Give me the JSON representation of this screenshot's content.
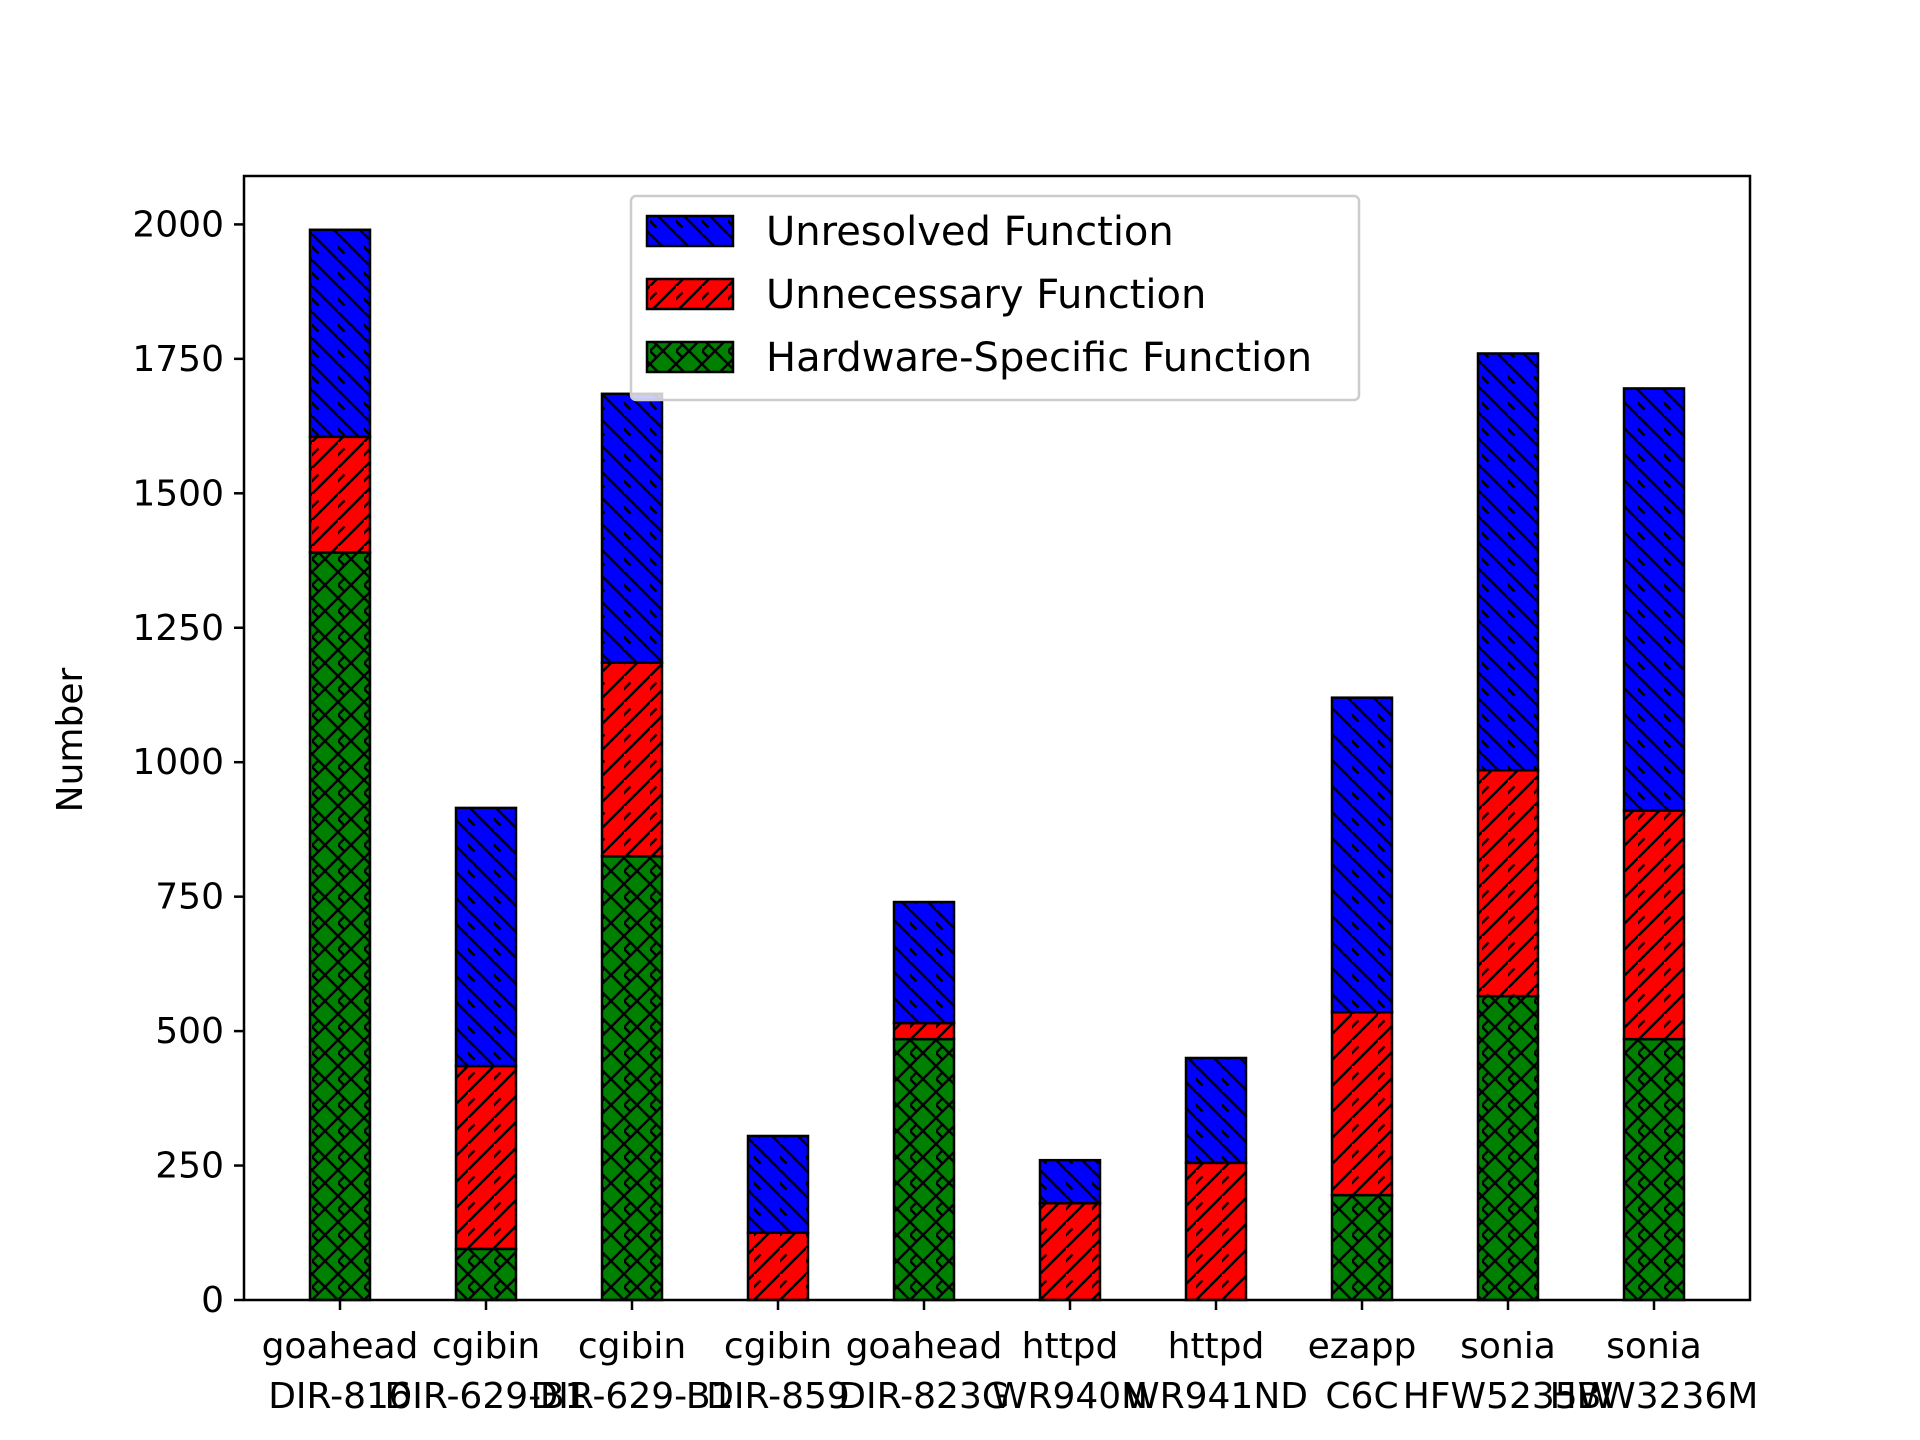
{
  "chart_data": {
    "type": "bar",
    "stacked": true,
    "title": "",
    "xlabel": "",
    "ylabel": "Number",
    "ylim": [
      0,
      2090
    ],
    "yticks": [
      0,
      250,
      500,
      750,
      1000,
      1250,
      1500,
      1750,
      2000
    ],
    "categories": [
      "goahead\nDIR-816",
      "cgibin\nDIR-629-B1",
      "cgibin\nDIR-629-B1",
      "cgibin\nDIR-859",
      "goahead\nDIR-823G",
      "httpd\nWR940N",
      "httpd\nWR941ND",
      "ezapp\nC6C",
      "sonia\nHFW5235W",
      "sonia\nHBW3236M"
    ],
    "series": [
      {
        "name": "Hardware-Specific Function",
        "color": "#008000",
        "hatch": "cross",
        "values": [
          1390,
          95,
          825,
          0,
          485,
          0,
          0,
          195,
          565,
          485
        ]
      },
      {
        "name": "Unnecessary Function",
        "color": "#ff0000",
        "hatch": "forward",
        "values": [
          215,
          340,
          360,
          125,
          30,
          180,
          255,
          340,
          420,
          425
        ]
      },
      {
        "name": "Unresolved Function",
        "color": "#0000ff",
        "hatch": "back",
        "values": [
          385,
          480,
          500,
          180,
          225,
          80,
          195,
          585,
          775,
          785
        ]
      }
    ],
    "legend": {
      "position": "top-center",
      "order": [
        "Unresolved Function",
        "Unnecessary Function",
        "Hardware-Specific Function"
      ]
    },
    "grid": false
  }
}
